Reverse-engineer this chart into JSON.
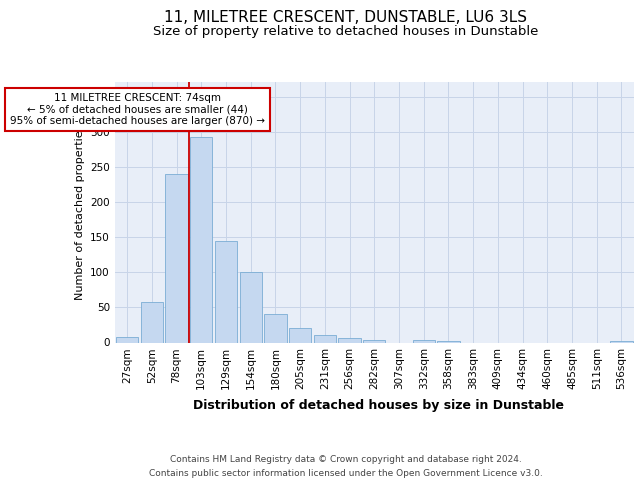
{
  "title": "11, MILETREE CRESCENT, DUNSTABLE, LU6 3LS",
  "subtitle": "Size of property relative to detached houses in Dunstable",
  "xlabel": "Distribution of detached houses by size in Dunstable",
  "ylabel": "Number of detached properties",
  "bar_labels": [
    "27sqm",
    "52sqm",
    "78sqm",
    "103sqm",
    "129sqm",
    "154sqm",
    "180sqm",
    "205sqm",
    "231sqm",
    "256sqm",
    "282sqm",
    "307sqm",
    "332sqm",
    "358sqm",
    "383sqm",
    "409sqm",
    "434sqm",
    "460sqm",
    "485sqm",
    "511sqm",
    "536sqm"
  ],
  "bar_values": [
    8,
    57,
    240,
    292,
    145,
    100,
    41,
    20,
    11,
    6,
    4,
    0,
    3,
    2,
    0,
    0,
    0,
    0,
    0,
    0,
    2
  ],
  "bar_color": "#c5d8f0",
  "bar_edge_color": "#7aadd4",
  "vline_color": "#cc0000",
  "vline_x": 2.5,
  "annotation_text": "11 MILETREE CRESCENT: 74sqm\n← 5% of detached houses are smaller (44)\n95% of semi-detached houses are larger (870) →",
  "annotation_box_color": "#ffffff",
  "annotation_box_edge_color": "#cc0000",
  "ylim": [
    0,
    370
  ],
  "yticks": [
    0,
    50,
    100,
    150,
    200,
    250,
    300,
    350
  ],
  "footer_line1": "Contains HM Land Registry data © Crown copyright and database right 2024.",
  "footer_line2": "Contains public sector information licensed under the Open Government Licence v3.0.",
  "title_fontsize": 11,
  "subtitle_fontsize": 9.5,
  "xlabel_fontsize": 9,
  "ylabel_fontsize": 8,
  "tick_fontsize": 7.5,
  "annotation_fontsize": 7.5,
  "footer_fontsize": 6.5,
  "background_color": "#ffffff",
  "grid_color": "#c8d4e8",
  "axes_bg_color": "#e8eef8"
}
